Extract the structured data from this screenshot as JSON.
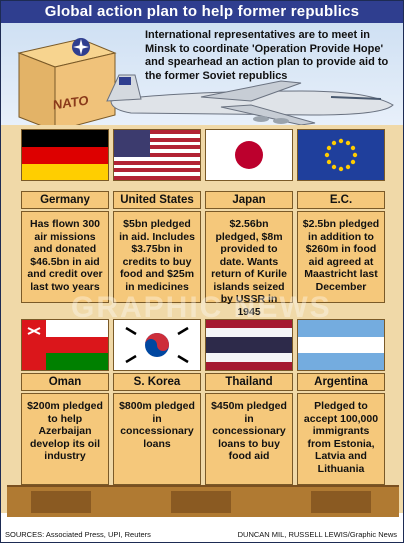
{
  "title": "Global action plan to help former republics",
  "intro": "International representatives are to meet in Minsk to coordinate 'Operation Provide Hope' and spearhead an action plan to provide aid to the former Soviet republics",
  "crate_label": "NATO",
  "watermark": "GRAPHIC NEWS",
  "countries_top": [
    {
      "name": "Germany",
      "text": "Has flown 300 air missions and donated $46.5bn in aid and credit over last two years",
      "flag_icon": "germany-flag"
    },
    {
      "name": "United States",
      "text": "$5bn pledged in aid. Includes $3.75bn in credits to buy food and $25m in medicines",
      "flag_icon": "usa-flag"
    },
    {
      "name": "Japan",
      "text": "$2.56bn pledged, $8m provided to date. Wants return of Kurile islands seized by USSR in 1945",
      "flag_icon": "japan-flag"
    },
    {
      "name": "E.C.",
      "text": "$2.5bn pledged in addition to $260m in food aid agreed at Maastricht last December",
      "flag_icon": "eu-flag"
    }
  ],
  "countries_bottom": [
    {
      "name": "Oman",
      "text": "$200m pledged to help Azerbaijan develop its oil industry",
      "flag_icon": "oman-flag"
    },
    {
      "name": "S. Korea",
      "text": "$800m pledged in concessionary loans",
      "flag_icon": "south-korea-flag"
    },
    {
      "name": "Thailand",
      "text": "$450m pledged in concessionary loans to buy food aid",
      "flag_icon": "thailand-flag"
    },
    {
      "name": "Argentina",
      "text": "Pledged to accept 100,000 immigrants from Estonia, Latvia and Lithuania",
      "flag_icon": "argentina-flag"
    }
  ],
  "footer": {
    "sources": "SOURCES: Associated Press, UPI, Reuters",
    "credit": "DUNCAN MIL, RUSSELL LEWIS/Graphic News"
  },
  "colors": {
    "title_bg": "#2f3e8f",
    "crate": "#f5c87b",
    "crate_edge": "#7a5a28"
  }
}
